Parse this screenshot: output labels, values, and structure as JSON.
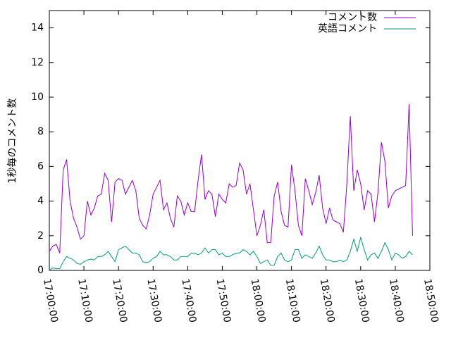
{
  "chart_data": {
    "type": "line",
    "y_label": "1秒毎のコメント数",
    "legend": "top-right",
    "x": [
      "17:00:00",
      "17:01:00",
      "17:02:00",
      "17:03:00",
      "17:04:00",
      "17:05:00",
      "17:06:00",
      "17:07:00",
      "17:08:00",
      "17:09:00",
      "17:10:00",
      "17:11:00",
      "17:12:00",
      "17:13:00",
      "17:14:00",
      "17:15:00",
      "17:16:00",
      "17:17:00",
      "17:18:00",
      "17:19:00",
      "17:20:00",
      "17:21:00",
      "17:22:00",
      "17:23:00",
      "17:24:00",
      "17:25:00",
      "17:26:00",
      "17:27:00",
      "17:28:00",
      "17:29:00",
      "17:30:00",
      "17:31:00",
      "17:32:00",
      "17:33:00",
      "17:34:00",
      "17:35:00",
      "17:36:00",
      "17:37:00",
      "17:38:00",
      "17:39:00",
      "17:40:00",
      "17:41:00",
      "17:42:00",
      "17:43:00",
      "17:44:00",
      "17:45:00",
      "17:46:00",
      "17:47:00",
      "17:48:00",
      "17:49:00",
      "17:50:00",
      "17:51:00",
      "17:52:00",
      "17:53:00",
      "17:54:00",
      "17:55:00",
      "17:56:00",
      "17:57:00",
      "17:58:00",
      "17:59:00",
      "18:00:00",
      "18:01:00",
      "18:02:00",
      "18:03:00",
      "18:04:00",
      "18:05:00",
      "18:06:00",
      "18:07:00",
      "18:08:00",
      "18:09:00",
      "18:10:00",
      "18:11:00",
      "18:12:00",
      "18:13:00",
      "18:14:00",
      "18:15:00",
      "18:16:00",
      "18:17:00",
      "18:18:00",
      "18:19:00",
      "18:20:00",
      "18:21:00",
      "18:22:00",
      "18:23:00",
      "18:24:00",
      "18:25:00",
      "18:26:00",
      "18:27:00",
      "18:28:00",
      "18:29:00",
      "18:30:00",
      "18:31:00",
      "18:32:00",
      "18:33:00",
      "18:34:00",
      "18:35:00",
      "18:36:00",
      "18:37:00",
      "18:38:00",
      "18:39:00",
      "18:40:00",
      "18:41:00",
      "18:42:00",
      "18:43:00",
      "18:44:00",
      "18:45:00"
    ],
    "series": [
      {
        "name": "コメント数",
        "color": "#9400d3",
        "values": [
          1.1,
          1.4,
          1.5,
          1.0,
          5.8,
          6.4,
          4.0,
          3.0,
          2.5,
          1.8,
          2.0,
          4.0,
          3.2,
          3.6,
          4.3,
          4.4,
          5.6,
          5.2,
          2.8,
          5.1,
          5.3,
          5.2,
          4.4,
          4.8,
          5.2,
          4.6,
          3.0,
          2.6,
          2.4,
          3.2,
          4.4,
          4.8,
          5.2,
          3.5,
          3.9,
          3.0,
          2.5,
          4.3,
          4.0,
          3.2,
          3.9,
          3.4,
          3.4,
          5.2,
          6.7,
          4.1,
          4.6,
          4.4,
          3.1,
          4.4,
          4.1,
          3.9,
          5.0,
          4.8,
          4.9,
          6.2,
          5.8,
          4.4,
          5.0,
          3.5,
          2.0,
          2.6,
          3.5,
          1.6,
          1.6,
          4.3,
          5.1,
          3.4,
          2.6,
          2.5,
          6.1,
          4.6,
          2.6,
          2.0,
          5.3,
          4.6,
          3.8,
          4.5,
          5.5,
          3.6,
          2.7,
          3.6,
          2.9,
          2.8,
          2.7,
          2.2,
          5.0,
          8.9,
          4.6,
          5.8,
          5.0,
          3.5,
          4.6,
          4.4,
          2.8,
          4.5,
          7.4,
          6.3,
          3.6,
          4.3,
          4.6,
          4.7,
          4.8,
          4.9,
          9.6,
          2.0
        ]
      },
      {
        "name": "英語コメント",
        "color": "#009e73",
        "values": [
          0,
          0.15,
          0.1,
          0.1,
          0.5,
          0.8,
          0.7,
          0.6,
          0.4,
          0.35,
          0.5,
          0.6,
          0.65,
          0.6,
          0.8,
          0.8,
          0.9,
          1.1,
          0.8,
          0.5,
          1.2,
          1.3,
          1.4,
          1.2,
          1.0,
          1.0,
          0.9,
          0.5,
          0.45,
          0.5,
          0.7,
          0.8,
          1.1,
          0.9,
          0.9,
          0.8,
          0.6,
          0.6,
          0.8,
          0.8,
          0.8,
          1.0,
          1.0,
          0.9,
          1.0,
          1.3,
          1.0,
          1.2,
          1.2,
          0.9,
          1.0,
          0.8,
          0.8,
          0.9,
          1.0,
          1.0,
          1.2,
          1.1,
          0.9,
          1.1,
          0.8,
          0.4,
          0.5,
          0.6,
          0.3,
          0.3,
          0.8,
          1.0,
          0.6,
          0.5,
          0.6,
          1.2,
          1.2,
          0.7,
          0.9,
          0.8,
          0.7,
          1.0,
          1.4,
          0.9,
          0.6,
          0.6,
          0.5,
          0.5,
          0.6,
          0.5,
          0.6,
          1.1,
          1.8,
          1.1,
          1.9,
          1.2,
          0.6,
          0.9,
          1.0,
          0.7,
          1.1,
          1.6,
          1.2,
          0.6,
          1.0,
          0.9,
          0.7,
          0.8,
          1.1,
          0.9
        ]
      }
    ],
    "xlim": [
      "17:00:00",
      "18:50:00"
    ],
    "xticks": [
      "17:00:00",
      "17:10:00",
      "17:20:00",
      "17:30:00",
      "17:40:00",
      "17:50:00",
      "18:00:00",
      "18:10:00",
      "18:20:00",
      "18:30:00",
      "18:40:00",
      "18:50:00"
    ],
    "ylim": [
      0,
      15
    ],
    "yticks": [
      0,
      2,
      4,
      6,
      8,
      10,
      12,
      14
    ]
  }
}
